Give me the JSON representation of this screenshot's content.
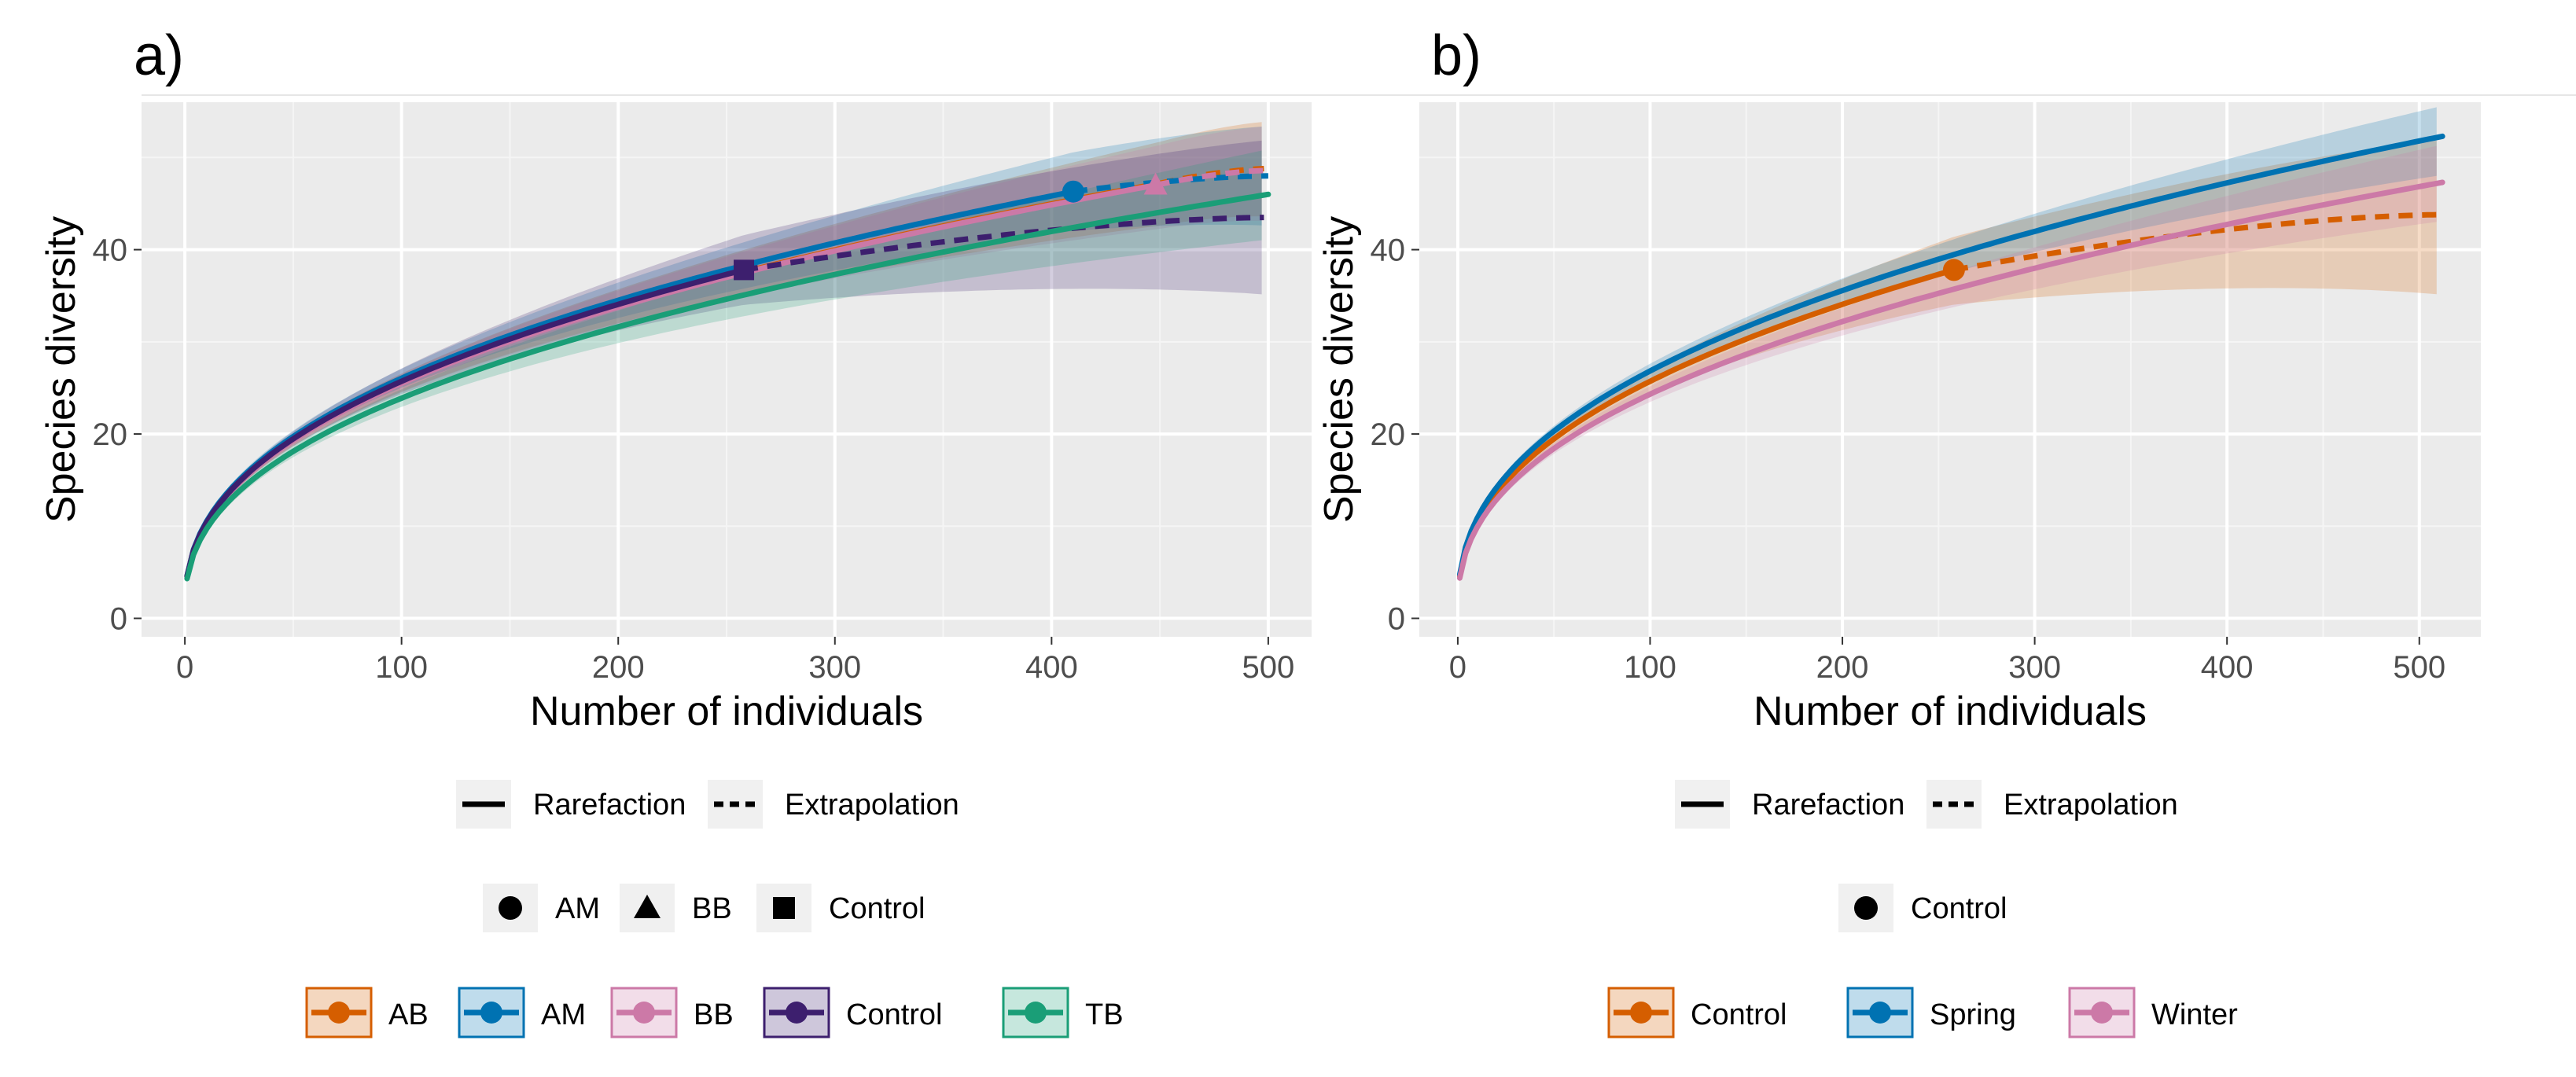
{
  "chart_data": [
    {
      "panel": "a)",
      "type": "line",
      "title": "",
      "xlabel": "Number of individuals",
      "ylabel": "Species diversity",
      "xlim": [
        -20,
        520
      ],
      "ylim": [
        -2,
        56
      ],
      "xticks": [
        0,
        100,
        200,
        300,
        400,
        500
      ],
      "yticks": [
        0,
        20,
        40
      ],
      "series": [
        {
          "name": "AB",
          "color": "#D55E00",
          "n_obs": 450,
          "s_obs": 47.2,
          "s_end": 48.8,
          "ci_end": [
            44.0,
            53.5
          ],
          "show_point": false,
          "shape": "",
          "end_x": 500
        },
        {
          "name": "AM",
          "color": "#0072B2",
          "n_obs": 410,
          "s_obs": 46.3,
          "s_end": 48.0,
          "ci_end": [
            43.0,
            53.0
          ],
          "show_point": true,
          "shape": "circle",
          "end_x": 500
        },
        {
          "name": "BB",
          "color": "#CC79A7",
          "n_obs": 448,
          "s_obs": 47.0,
          "s_end": 48.6,
          "ci_end": [
            43.5,
            53.0
          ],
          "show_point": true,
          "shape": "triangle",
          "end_x": 500
        },
        {
          "name": "Control",
          "color": "#3D1F6E",
          "n_obs": 258,
          "s_obs": 37.8,
          "s_end": 43.5,
          "ci_end": [
            35.5,
            51.5
          ],
          "show_point": true,
          "shape": "square",
          "end_x": 500
        },
        {
          "name": "TB",
          "color": "#1A9E77",
          "n_obs": 500,
          "s_obs": 46.0,
          "s_end": 46.0,
          "ci_end": [
            41.5,
            50.5
          ],
          "show_point": false,
          "shape": "",
          "end_x": 500
        }
      ],
      "legend_linetype": [
        "Rarefaction",
        "Extrapolation"
      ],
      "legend_shape": [
        {
          "label": "AM",
          "shape": "circle"
        },
        {
          "label": "BB",
          "shape": "triangle"
        },
        {
          "label": "Control",
          "shape": "square"
        }
      ],
      "legend_color": [
        "AB",
        "AM",
        "BB",
        "Control",
        "TB"
      ]
    },
    {
      "panel": "b)",
      "type": "line",
      "title": "",
      "xlabel": "Number of individuals",
      "ylabel": "Species diversity",
      "xlim": [
        -20,
        532
      ],
      "ylim": [
        -2,
        56
      ],
      "xticks": [
        0,
        100,
        200,
        300,
        400,
        500
      ],
      "yticks": [
        0,
        20,
        40
      ],
      "series": [
        {
          "name": "Control",
          "color": "#D55E00",
          "n_obs": 258,
          "s_obs": 37.8,
          "s_end": 43.8,
          "ci_end": [
            35.5,
            51.5
          ],
          "show_point": true,
          "shape": "circle",
          "end_x": 512
        },
        {
          "name": "Spring",
          "color": "#0072B2",
          "n_obs": 512,
          "s_obs": 52.3,
          "s_end": 52.3,
          "ci_end": [
            48.5,
            55.2
          ],
          "show_point": false,
          "shape": "",
          "end_x": 512
        },
        {
          "name": "Winter",
          "color": "#CC79A7",
          "n_obs": 512,
          "s_obs": 47.3,
          "s_end": 47.3,
          "ci_end": [
            43.5,
            51.0
          ],
          "show_point": false,
          "shape": "",
          "end_x": 512
        }
      ],
      "legend_linetype": [
        "Rarefaction",
        "Extrapolation"
      ],
      "legend_shape": [
        {
          "label": "Control",
          "shape": "circle"
        }
      ],
      "legend_color": [
        "Control",
        "Spring",
        "Winter"
      ]
    }
  ]
}
